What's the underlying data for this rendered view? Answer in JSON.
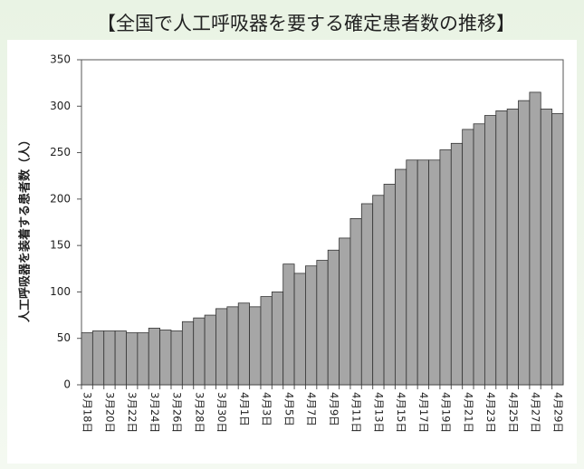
{
  "chart_data": {
    "type": "bar",
    "title": "【全国で人工呼吸器を要する確定患者数の推移】",
    "y_label": "人工呼吸器を装着する患者数（人）",
    "categories": [
      "3月18日",
      null,
      "3月20日",
      null,
      "3月22日",
      null,
      "3月24日",
      null,
      "3月26日",
      null,
      "3月28日",
      null,
      "3月30日",
      null,
      "4月1日",
      null,
      "4月3日",
      null,
      "4月5日",
      null,
      "4月7日",
      null,
      "4月9日",
      null,
      "4月11日",
      null,
      "4月13日",
      null,
      "4月15日",
      null,
      "4月17日",
      null,
      "4月19日",
      null,
      "4月21日",
      null,
      "4月23日",
      null,
      "4月25日",
      null,
      "4月27日",
      null,
      "4月29日"
    ],
    "values": [
      56,
      58,
      58,
      58,
      56,
      56,
      61,
      59,
      58,
      68,
      72,
      75,
      82,
      84,
      88,
      84,
      95,
      100,
      130,
      120,
      128,
      134,
      145,
      158,
      179,
      195,
      204,
      216,
      232,
      242,
      242,
      242,
      253,
      260,
      275,
      281,
      290,
      295,
      297,
      306,
      315,
      297,
      292
    ],
    "color": "#a6a6a6",
    "ylim": [
      0,
      350
    ],
    "yticks": [
      0,
      50,
      100,
      150,
      200,
      250,
      300,
      350
    ],
    "grid": false
  }
}
